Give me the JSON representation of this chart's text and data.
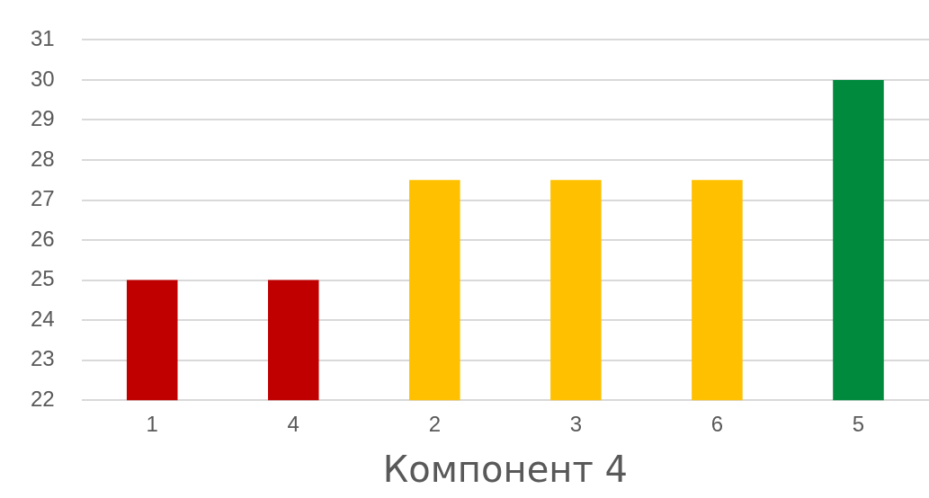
{
  "chart_data": {
    "type": "bar",
    "xlabel": "Компонент 4",
    "categories": [
      "1",
      "4",
      "2",
      "3",
      "6",
      "5"
    ],
    "values": [
      25,
      25,
      27.5,
      27.5,
      27.5,
      30
    ],
    "colors": [
      "#c00000",
      "#c00000",
      "#ffc000",
      "#ffc000",
      "#ffc000",
      "#008a3e"
    ],
    "ylim": [
      22,
      31
    ],
    "yticks": [
      22,
      23,
      24,
      25,
      26,
      27,
      28,
      29,
      30,
      31
    ],
    "grid": "y",
    "legend": false
  }
}
